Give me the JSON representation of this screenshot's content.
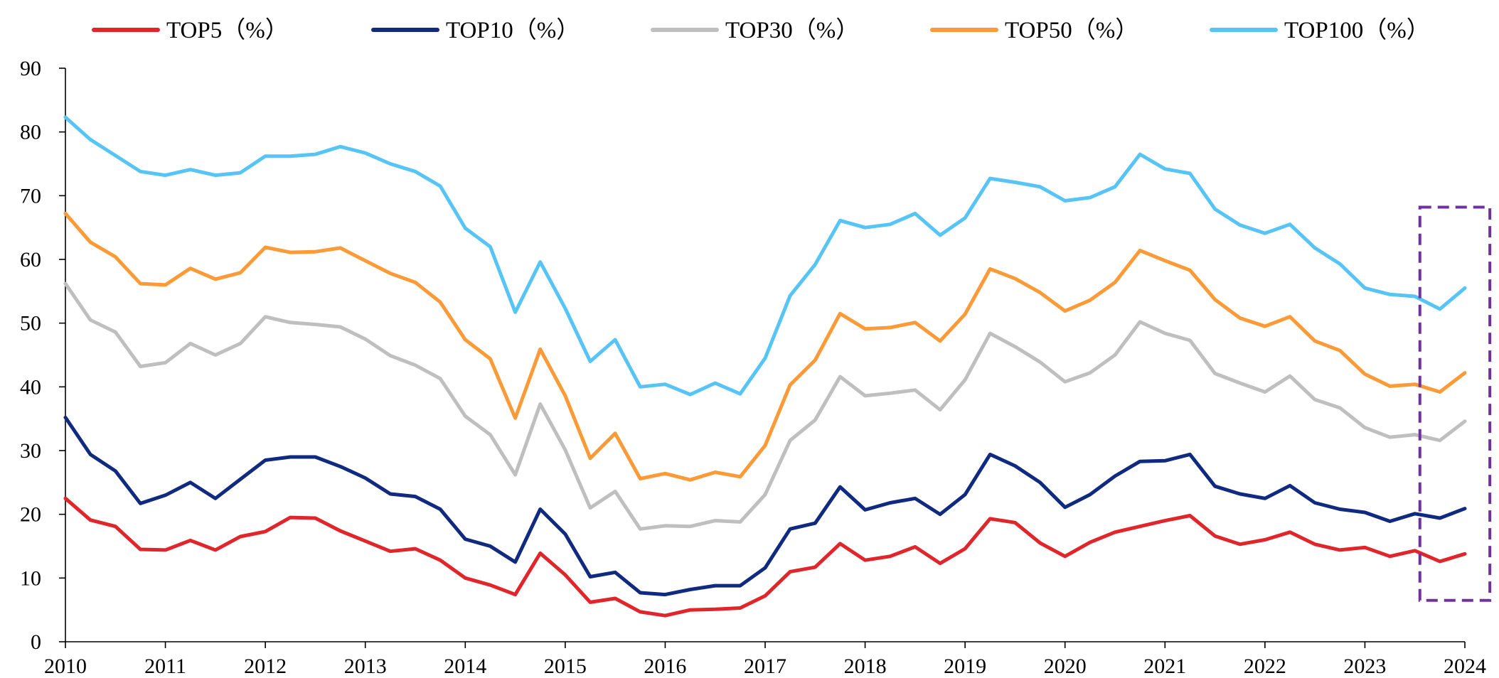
{
  "chart_data": {
    "type": "line",
    "title": "",
    "xlabel": "",
    "ylabel": "",
    "ylim": [
      0,
      90
    ],
    "yticks": [
      "0",
      "10",
      "20",
      "30",
      "40",
      "50",
      "60",
      "70",
      "80",
      "90"
    ],
    "xlim": [
      2010,
      2024
    ],
    "xticks": [
      "2010",
      "2011",
      "2012",
      "2013",
      "2014",
      "2015",
      "2016",
      "2017",
      "2018",
      "2019",
      "2020",
      "2021",
      "2022",
      "2023",
      "2024"
    ],
    "grid": false,
    "legend_position": "top",
    "x": [
      2010.0,
      2010.25,
      2010.5,
      2010.75,
      2011.0,
      2011.25,
      2011.5,
      2011.75,
      2012.0,
      2012.25,
      2012.5,
      2012.75,
      2013.0,
      2013.25,
      2013.5,
      2013.75,
      2014.0,
      2014.25,
      2014.5,
      2014.75,
      2015.0,
      2015.25,
      2015.5,
      2015.75,
      2016.0,
      2016.25,
      2016.5,
      2016.75,
      2017.0,
      2017.25,
      2017.5,
      2017.75,
      2018.0,
      2018.25,
      2018.5,
      2018.75,
      2019.0,
      2019.25,
      2019.5,
      2019.75,
      2020.0,
      2020.25,
      2020.5,
      2020.75,
      2021.0,
      2021.25,
      2021.5,
      2021.75,
      2022.0,
      2022.25,
      2022.5,
      2022.75,
      2023.0,
      2023.25,
      2023.5,
      2023.75,
      2024.0
    ],
    "series": [
      {
        "name": "TOP5（%）",
        "color": "#e0262a",
        "values": [
          22.5,
          19.1,
          18.1,
          14.5,
          14.4,
          15.9,
          14.4,
          16.5,
          17.3,
          19.5,
          19.4,
          17.4,
          15.8,
          14.2,
          14.6,
          12.8,
          10.0,
          8.9,
          7.4,
          13.9,
          10.5,
          6.2,
          6.8,
          4.7,
          4.1,
          5.0,
          5.1,
          5.3,
          7.2,
          11.0,
          11.7,
          15.4,
          12.8,
          13.4,
          14.9,
          12.3,
          14.6,
          19.3,
          18.7,
          15.5,
          13.4,
          15.6,
          17.2,
          18.1,
          19.0,
          19.8,
          16.6,
          15.3,
          16.0,
          17.2,
          15.3,
          14.4,
          14.8,
          13.4,
          14.3,
          12.6,
          13.8
        ]
      },
      {
        "name": "TOP10（%）",
        "color": "#102a80",
        "values": [
          35.2,
          29.4,
          26.8,
          21.7,
          23.0,
          25.0,
          22.5,
          25.5,
          28.5,
          29.0,
          29.0,
          27.5,
          25.7,
          23.2,
          22.8,
          20.8,
          16.1,
          15.0,
          12.5,
          20.8,
          16.9,
          10.2,
          10.9,
          7.7,
          7.4,
          8.2,
          8.8,
          8.8,
          11.6,
          17.7,
          18.6,
          24.3,
          20.7,
          21.8,
          22.5,
          20.0,
          23.1,
          29.4,
          27.6,
          25.0,
          21.1,
          23.1,
          26.0,
          28.3,
          28.4,
          29.4,
          24.4,
          23.2,
          22.5,
          24.5,
          21.8,
          20.8,
          20.3,
          18.9,
          20.1,
          19.4,
          20.9
        ]
      },
      {
        "name": "TOP30（%）",
        "color": "#bfbfbf",
        "values": [
          56.2,
          50.5,
          48.6,
          43.2,
          43.8,
          46.8,
          45.0,
          46.8,
          51.0,
          50.1,
          49.8,
          49.4,
          47.5,
          44.9,
          43.4,
          41.3,
          35.4,
          32.5,
          26.2,
          37.3,
          30.1,
          21.0,
          23.6,
          17.7,
          18.2,
          18.1,
          19.0,
          18.8,
          23.1,
          31.6,
          34.8,
          41.6,
          38.6,
          39.0,
          39.5,
          36.4,
          41.1,
          48.4,
          46.3,
          43.9,
          40.8,
          42.2,
          45.0,
          50.2,
          48.4,
          47.3,
          42.1,
          40.6,
          39.2,
          41.7,
          38.0,
          36.7,
          33.6,
          32.1,
          32.5,
          31.6,
          34.6
        ]
      },
      {
        "name": "TOP50（%）",
        "color": "#fb9a36",
        "values": [
          67.2,
          62.7,
          60.4,
          56.2,
          56.0,
          58.6,
          56.9,
          57.9,
          61.9,
          61.1,
          61.2,
          61.8,
          59.8,
          57.8,
          56.4,
          53.3,
          47.4,
          44.4,
          35.1,
          45.9,
          38.6,
          28.8,
          32.7,
          25.6,
          26.4,
          25.4,
          26.6,
          25.9,
          30.8,
          40.3,
          44.2,
          51.5,
          49.1,
          49.3,
          50.1,
          47.2,
          51.4,
          58.5,
          57.0,
          54.8,
          51.9,
          53.6,
          56.4,
          61.4,
          59.8,
          58.3,
          53.7,
          50.8,
          49.5,
          51.0,
          47.2,
          45.7,
          42.0,
          40.1,
          40.4,
          39.2,
          42.2
        ]
      },
      {
        "name": "TOP100（%）",
        "color": "#56c5f5",
        "values": [
          82.3,
          78.8,
          76.3,
          73.8,
          73.2,
          74.1,
          73.2,
          73.6,
          76.2,
          76.2,
          76.5,
          77.7,
          76.7,
          75.0,
          73.8,
          71.5,
          64.9,
          62.0,
          51.7,
          59.6,
          52.3,
          44.0,
          47.4,
          40.0,
          40.4,
          38.8,
          40.6,
          38.9,
          44.5,
          54.3,
          59.2,
          66.1,
          65.0,
          65.5,
          67.2,
          63.8,
          66.5,
          72.7,
          72.1,
          71.4,
          69.2,
          69.7,
          71.4,
          76.5,
          74.2,
          73.5,
          67.9,
          65.4,
          64.1,
          65.5,
          61.8,
          59.3,
          55.5,
          54.5,
          54.2,
          52.2,
          55.5
        ]
      }
    ],
    "annotation": {
      "type": "dashed-rectangle",
      "color": "#7030a0",
      "x_range": [
        2023.55,
        2024.25
      ],
      "y_range": [
        6.5,
        68.2
      ]
    }
  }
}
